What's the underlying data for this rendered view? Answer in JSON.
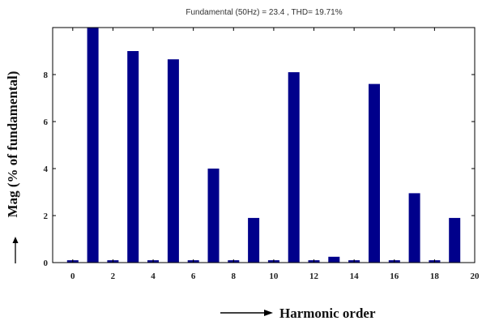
{
  "chart_data": {
    "type": "bar",
    "title": "Fundamental (50Hz) = 23.4 , THD= 19.71%",
    "xlabel": "Harmonic order",
    "ylabel": "Mag (% of fundamental)",
    "xlim": [
      -1,
      20
    ],
    "ylim": [
      0,
      10
    ],
    "xticks": [
      0,
      2,
      4,
      6,
      8,
      10,
      12,
      14,
      16,
      18,
      20
    ],
    "yticks": [
      0,
      2,
      4,
      6,
      8
    ],
    "grid": false,
    "legend": "none",
    "color": "#00008b",
    "x": [
      0,
      1,
      2,
      3,
      4,
      5,
      6,
      7,
      8,
      9,
      10,
      11,
      12,
      13,
      14,
      15,
      16,
      17,
      18,
      19
    ],
    "values": [
      0.1,
      10,
      0.1,
      9.0,
      0.1,
      8.65,
      0.1,
      4.0,
      0.1,
      1.9,
      0.1,
      8.1,
      0.1,
      0.25,
      0.1,
      7.6,
      0.1,
      2.95,
      0.1,
      1.9
    ]
  }
}
